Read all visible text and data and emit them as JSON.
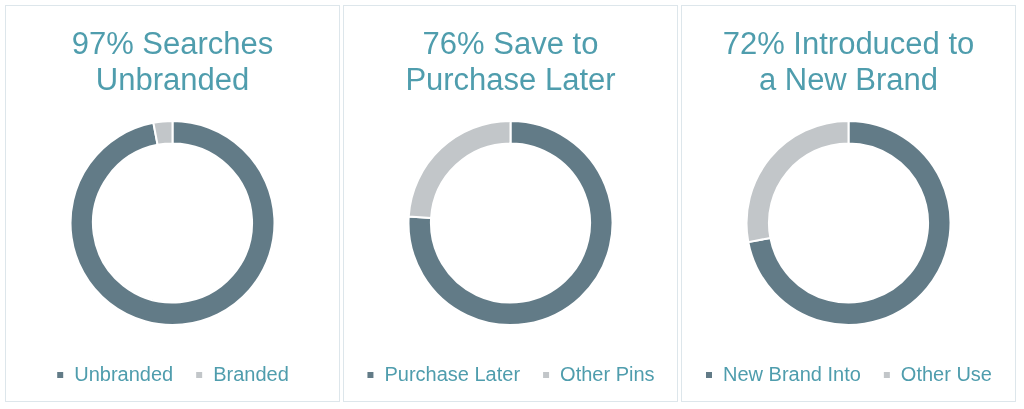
{
  "chart_data": [
    {
      "type": "donut",
      "title": "97% Searches Unbranded",
      "categories": [
        "Unbranded",
        "Branded"
      ],
      "values": [
        97,
        3
      ],
      "colors": [
        "#627b87",
        "#c2c6c9"
      ],
      "legend": "bottom"
    },
    {
      "type": "donut",
      "title": "76% Save to Purchase Later",
      "categories": [
        "Purchase Later",
        "Other Pins"
      ],
      "values": [
        76,
        24
      ],
      "colors": [
        "#627b87",
        "#c2c6c9"
      ],
      "legend": "bottom"
    },
    {
      "type": "donut",
      "title": "72% Introduced to a New Brand",
      "categories": [
        "New Brand Into",
        "Other Use"
      ],
      "values": [
        72,
        28
      ],
      "colors": [
        "#627b87",
        "#c2c6c9"
      ],
      "legend": "bottom"
    }
  ]
}
